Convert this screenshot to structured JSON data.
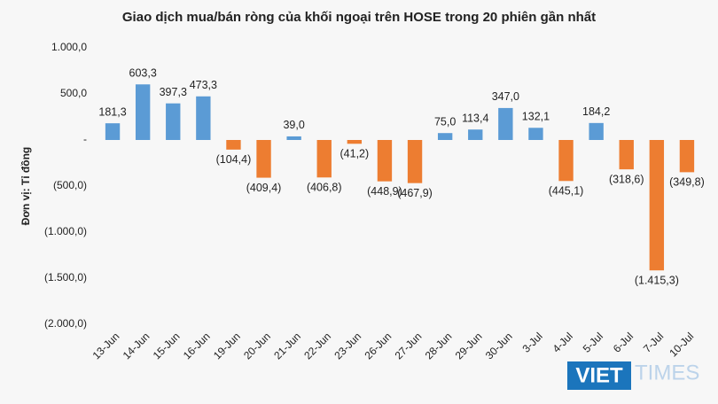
{
  "chart_data": {
    "type": "bar",
    "title": "Giao dịch mua/bán ròng của khối ngoại trên HOSE trong 20 phiên gần nhất",
    "y_axis_label": "Đơn vị: Tỉ đồng",
    "categories": [
      "13-Jun",
      "14-Jun",
      "15-Jun",
      "16-Jun",
      "19-Jun",
      "20-Jun",
      "21-Jun",
      "22-Jun",
      "23-Jun",
      "26-Jun",
      "27-Jun",
      "28-Jun",
      "29-Jun",
      "30-Jun",
      "3-Jul",
      "4-Jul",
      "5-Jul",
      "6-Jul",
      "7-Jul",
      "10-Jul"
    ],
    "values": [
      181.3,
      603.3,
      397.3,
      473.3,
      -104.4,
      -409.4,
      39.0,
      -406.8,
      -41.2,
      -448.9,
      -467.9,
      75.0,
      113.4,
      347.0,
      132.1,
      -445.1,
      184.2,
      -318.6,
      -1415.3,
      -349.8
    ],
    "value_labels": [
      "181,3",
      "603,3",
      "397,3",
      "473,3",
      "(104,4)",
      "(409,4)",
      "39,0",
      "(406,8)",
      "(41,2)",
      "(448,9)",
      "(467,9)",
      "75,0",
      "113,4",
      "347,0",
      "132,1",
      "(445,1)",
      "184,2",
      "(318,6)",
      "(1.415,3)",
      "(349,8)"
    ],
    "positive_color": "#5b9bd5",
    "negative_color": "#ed7d31",
    "ylim": [
      -2000,
      1000
    ],
    "yticks": [
      {
        "value": 1000,
        "label": "1.000,0"
      },
      {
        "value": 500,
        "label": "500,0"
      },
      {
        "value": 0,
        "label": "-"
      },
      {
        "value": -500,
        "label": "(500,0)"
      },
      {
        "value": -1000,
        "label": "(1.000,0)"
      },
      {
        "value": -1500,
        "label": "(1.500,0)"
      },
      {
        "value": -2000,
        "label": "(2.000,0)"
      }
    ],
    "grid": false
  },
  "logo": {
    "left": "VIET",
    "right": "TIMES"
  }
}
